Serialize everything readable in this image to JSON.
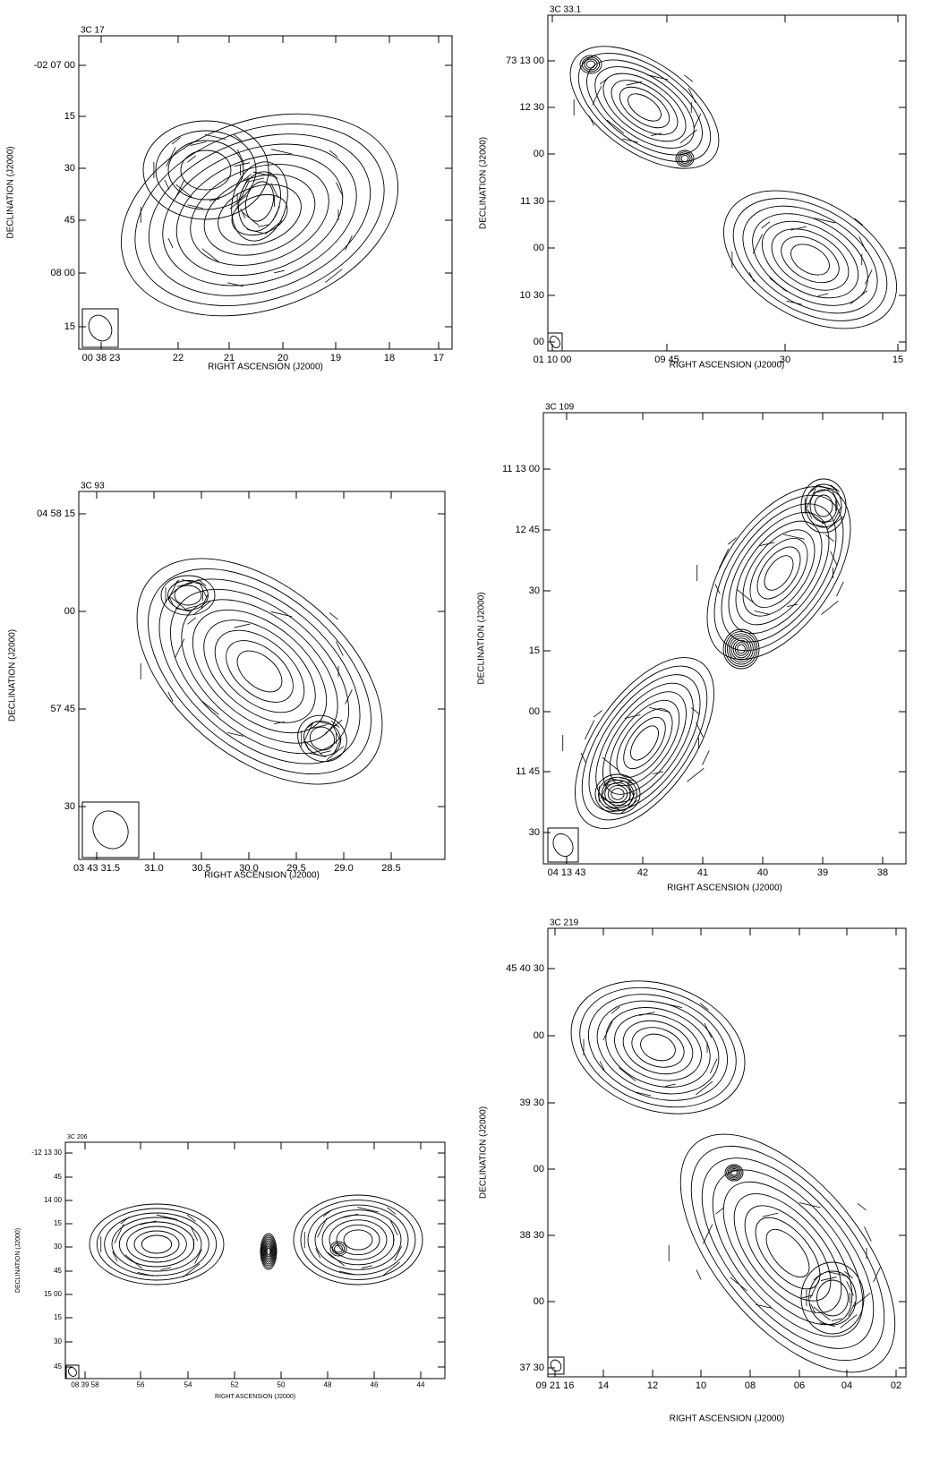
{
  "panels": [
    {
      "title": "3C 17",
      "xlabel": "RIGHT ASCENSION (J2000)",
      "ylabel": "DECLINATION (J2000)",
      "yticks": [
        "-02 07 00",
        "15",
        "30",
        "45",
        "08 00",
        "15"
      ],
      "xticks": [
        "00 38 23",
        "22",
        "21",
        "20",
        "19",
        "18",
        "17"
      ]
    },
    {
      "title": "3C 33.1",
      "xlabel": "RIGHT ASCENSION (J2000)",
      "ylabel": "DECLINATION (J2000)",
      "yticks": [
        "73 13 00",
        "12 30",
        "00",
        "11 30",
        "00",
        "10 30",
        "00"
      ],
      "xticks": [
        "01 10 00",
        "09 45",
        "30",
        "15"
      ]
    },
    {
      "title": "3C 93",
      "xlabel": "RIGHT ASCENSION (J2000)",
      "ylabel": "DECLINATION (J2000)",
      "yticks": [
        "04 58 15",
        "00",
        "57 45",
        "30"
      ],
      "xticks": [
        "03 43 31.5",
        "31.0",
        "30.5",
        "30.0",
        "29.5",
        "29.0",
        "28.5"
      ]
    },
    {
      "title": "3C 109",
      "xlabel": "RIGHT ASCENSION (J2000)",
      "ylabel": "DECLINATION (J2000)",
      "yticks": [
        "11 13 00",
        "12 45",
        "30",
        "15",
        "00",
        "11 45",
        "30"
      ],
      "xticks": [
        "04 13 43",
        "42",
        "41",
        "40",
        "39",
        "38"
      ]
    },
    {
      "title": "3C 206",
      "xlabel": "RIGHT ASCENSION (J2000)",
      "ylabel": "DECLINATION (J2000)",
      "yticks": [
        "-12 13 30",
        "45",
        "14 00",
        "15",
        "30",
        "45",
        "15 00",
        "15",
        "30",
        "45"
      ],
      "xticks": [
        "08 39 58",
        "56",
        "54",
        "52",
        "50",
        "48",
        "46",
        "44"
      ]
    },
    {
      "title": "3C 219",
      "xlabel": "RIGHT ASCENSION (J2000)",
      "ylabel": "DECLINATION (J2000)",
      "yticks": [
        "45 40 30",
        "00",
        "39 30",
        "00",
        "38 30",
        "00",
        "37 30"
      ],
      "xticks": [
        "09 21 16",
        "14",
        "12",
        "10",
        "08",
        "06",
        "04",
        "02"
      ]
    }
  ]
}
